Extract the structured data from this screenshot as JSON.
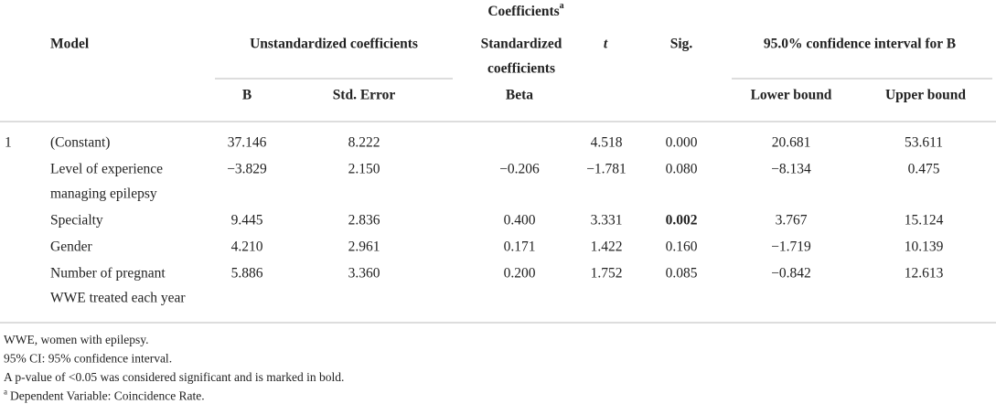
{
  "title": "Coefficients",
  "title_sup": "a",
  "header": {
    "model": "Model",
    "unstandardized": "Unstandardized coefficients",
    "standardized": [
      "Standardized",
      "coefficients"
    ],
    "t": "t",
    "sig": "Sig.",
    "ci": "95.0% confidence interval for B",
    "b": "B",
    "std_error": "Std. Error",
    "beta": "Beta",
    "lower": "Lower bound",
    "upper": "Upper bound"
  },
  "table": {
    "model_number": "1",
    "rows": [
      {
        "label": [
          "(Constant)"
        ],
        "b": "37.146",
        "std_error": "8.222",
        "t": "4.518",
        "sig": "0.000",
        "lower": "20.681",
        "upper": "53.611"
      },
      {
        "label": [
          "Level of experience",
          "managing epilepsy"
        ],
        "b": "−3.829",
        "std_error": "2.150",
        "beta": "−0.206",
        "t": "−1.781",
        "sig": "0.080",
        "lower": "−8.134",
        "upper": "0.475"
      },
      {
        "label": [
          "Specialty"
        ],
        "b": "9.445",
        "std_error": "2.836",
        "beta": "0.400",
        "t": "3.331",
        "sig": "0.002",
        "sig_bold": true,
        "lower": "3.767",
        "upper": "15.124"
      },
      {
        "label": [
          "Gender"
        ],
        "b": "4.210",
        "std_error": "2.961",
        "beta": "0.171",
        "t": "1.422",
        "sig": "0.160",
        "lower": "−1.719",
        "upper": "10.139"
      },
      {
        "label": [
          "Number of pregnant",
          "WWE treated each year"
        ],
        "b": "5.886",
        "std_error": "3.360",
        "beta": "0.200",
        "t": "1.752",
        "sig": "0.085",
        "lower": "−0.842",
        "upper": "12.613"
      }
    ]
  },
  "footnotes": [
    "WWE, women with epilepsy.",
    "95% CI: 95% confidence interval.",
    "A p-value of <0.05 was considered significant and is marked in bold."
  ],
  "dependent_note": {
    "sup": "a",
    "text": "Dependent Variable: Coincidence Rate."
  }
}
